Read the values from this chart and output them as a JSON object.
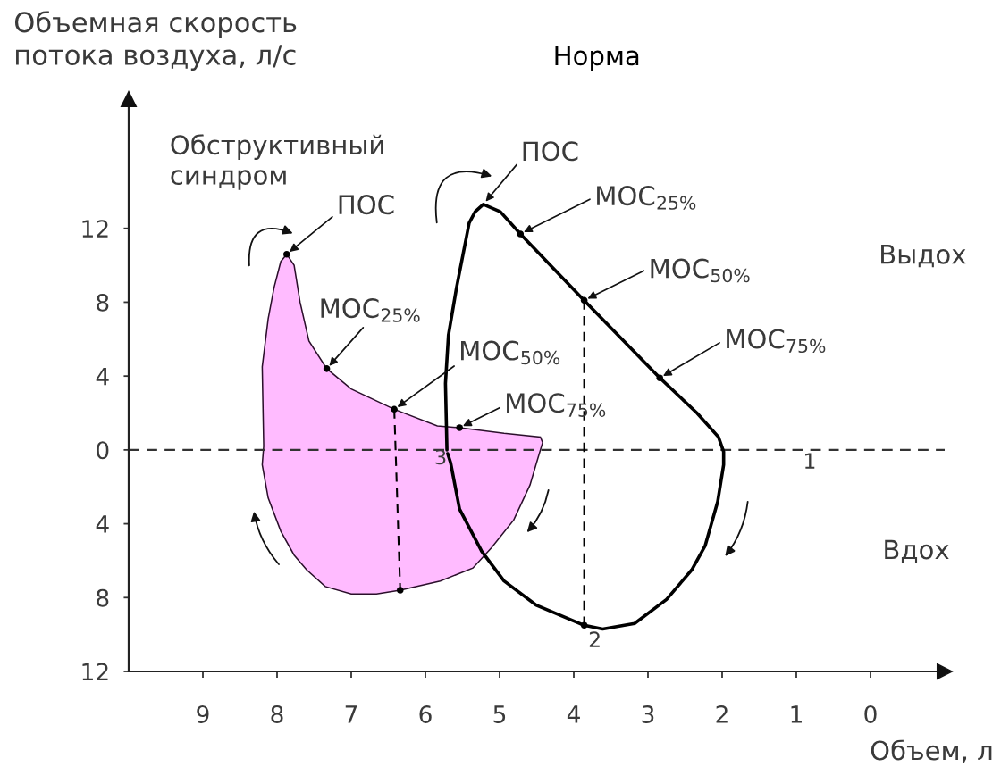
{
  "chart_data": {
    "type": "line",
    "xlabel": "Объем, л",
    "ylabel": "Объемная скорость\nпотока воздуха, л/с",
    "xlim": [
      10,
      -1
    ],
    "ylim": [
      -12,
      19
    ],
    "xticks": [
      9,
      8,
      7,
      6,
      5,
      4,
      3,
      2,
      1,
      0
    ],
    "yticks": [
      {
        "value": -12,
        "label": "12"
      },
      {
        "value": -8,
        "label": "8"
      },
      {
        "value": -4,
        "label": "4"
      },
      0,
      4,
      8,
      12
    ],
    "series": [
      {
        "name": "Обструктивный\nсиндром",
        "type": "area",
        "color": "#ffbbff",
        "x": [
          8.18,
          8.2,
          8.12,
          8.04,
          7.95,
          7.87,
          7.77,
          7.69,
          7.57,
          7.33,
          7.0,
          6.42,
          5.84,
          5.54,
          4.94,
          4.45,
          4.42,
          4.51,
          4.59,
          4.81,
          5.11,
          5.36,
          5.8,
          6.34,
          6.66,
          7.0,
          7.35,
          7.6,
          7.77,
          7.95,
          8.12,
          8.2
        ],
        "values": [
          0.2,
          4.5,
          7.1,
          8.8,
          10.2,
          10.6,
          10.0,
          8.0,
          5.9,
          4.4,
          3.3,
          2.2,
          1.3,
          1.2,
          0.9,
          0.7,
          0.4,
          -0.8,
          -1.9,
          -3.8,
          -5.3,
          -6.4,
          -7.1,
          -7.6,
          -7.8,
          -7.8,
          -7.4,
          -6.5,
          -5.7,
          -4.4,
          -2.6,
          -0.8
        ]
      },
      {
        "name": "Норма",
        "color": "#000000",
        "x": [
          5.71,
          5.73,
          5.69,
          5.58,
          5.41,
          5.33,
          5.22,
          4.99,
          4.72,
          3.86,
          2.84,
          2.34,
          2.05,
          1.98,
          1.98,
          2.06,
          2.23,
          2.41,
          2.75,
          3.18,
          3.61,
          3.86,
          4.51,
          4.94,
          5.24,
          5.54,
          5.66,
          5.7
        ],
        "values": [
          0.0,
          3.6,
          6.2,
          8.8,
          12.3,
          12.9,
          13.3,
          12.9,
          11.7,
          8.1,
          3.9,
          2.0,
          0.7,
          -0.1,
          -0.8,
          -2.8,
          -5.2,
          -6.5,
          -8.1,
          -9.4,
          -9.7,
          -9.5,
          -8.4,
          -7.1,
          -5.5,
          -3.2,
          -0.7,
          -0.2
        ]
      },
      {
        "color": "#000000",
        "line_style": "dashed",
        "x": [
          6.42,
          6.34
        ],
        "values": [
          2.2,
          -7.6
        ]
      },
      {
        "color": "#000000",
        "line_style": "dashed",
        "x": [
          3.86,
          3.86
        ],
        "values": [
          8.1,
          -9.5
        ]
      },
      {
        "type": "scatter",
        "color": "#000000",
        "marker": "circle",
        "x": [
          7.87,
          7.33,
          6.42,
          5.54,
          6.34,
          4.72,
          3.86,
          2.84,
          3.86
        ],
        "values": [
          10.6,
          4.4,
          2.2,
          1.2,
          -7.6,
          11.7,
          8.1,
          3.9,
          -9.5
        ]
      }
    ],
    "ref_lines": [
      {
        "axis": "y",
        "value": 0,
        "line_style": "dashed",
        "color": "#333333"
      }
    ],
    "annotations": [
      {
        "text": "ПОС",
        "x": 7.87,
        "y": 10.6
      },
      {
        "text": "МОС$_{25%}$",
        "x": 7.33,
        "y": 4.4
      },
      {
        "text": "МОС$_{50%}$",
        "x": 6.42,
        "y": 2.2
      },
      {
        "text": "МОС$_{75%}$",
        "x": 5.54,
        "y": 1.2
      },
      {
        "text": "ПОС",
        "x": 5.22,
        "y": 13.3
      },
      {
        "text": "МОС$_{25%}$",
        "x": 4.72,
        "y": 11.7
      },
      {
        "text": "МОС$_{50%}$",
        "x": 3.86,
        "y": 8.1
      },
      {
        "text": "МОС$_{75%}$",
        "x": 2.84,
        "y": 3.9
      },
      {
        "text": "1",
        "x": 0.82,
        "y": 0
      },
      {
        "text": "2",
        "x": 3.86,
        "y": -9.5
      },
      {
        "text": "3",
        "x": 5.71,
        "y": 0
      },
      "Выдох",
      "Вдох"
    ]
  }
}
